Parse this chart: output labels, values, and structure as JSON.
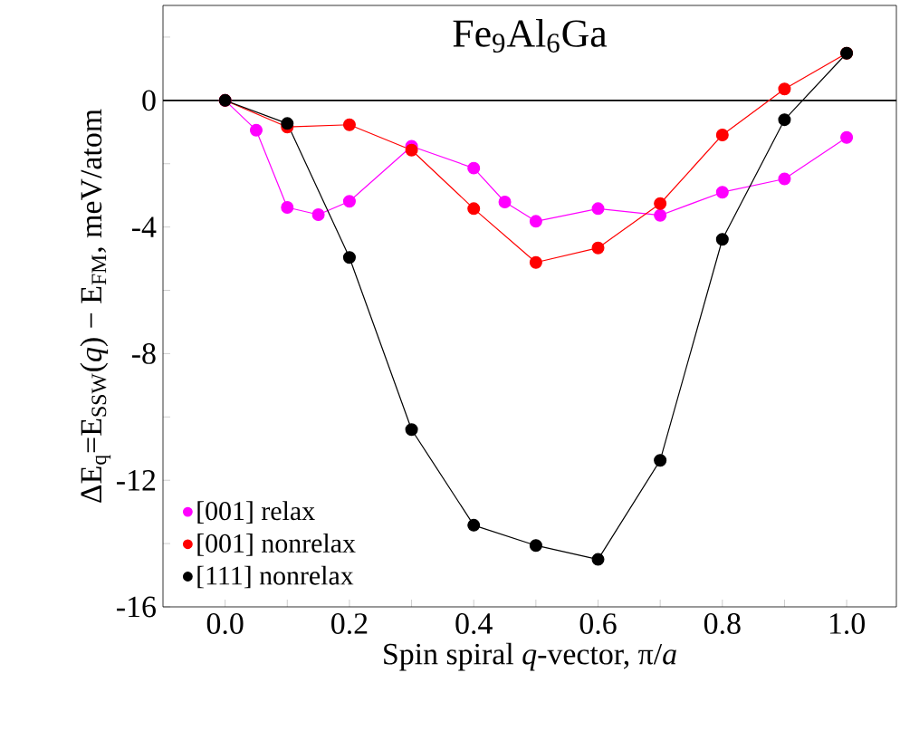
{
  "chart_data": {
    "type": "line",
    "title": "Fe$_{9}$Al$_{6}$Ga",
    "xlabel": "Spin spiral *q*-vector, π/*a*",
    "ylabel": "ΔE$_{q}$=E$_{SSW}$(*q*) − E$_{FM}$, meV/atom",
    "xlim": [
      -0.1,
      1.08
    ],
    "ylim": [
      -16,
      3
    ],
    "xticks": [
      {
        "value": 0,
        "label": "0.0"
      },
      {
        "value": 0.1,
        "label": null
      },
      {
        "value": 0.2,
        "label": "0.2"
      },
      {
        "value": 0.3,
        "label": null
      },
      {
        "value": 0.4,
        "label": "0.4"
      },
      {
        "value": 0.5,
        "label": null
      },
      {
        "value": 0.6,
        "label": "0.6"
      },
      {
        "value": 0.7,
        "label": null
      },
      {
        "value": 0.8,
        "label": "0.8"
      },
      {
        "value": 0.9,
        "label": null
      },
      {
        "value": 1,
        "label": "1.0"
      }
    ],
    "yticks": [
      -16,
      {
        "value": -14,
        "label": null
      },
      -12,
      {
        "value": -10,
        "label": null
      },
      -8,
      {
        "value": -6,
        "label": null
      },
      -4,
      {
        "value": -2,
        "label": null
      },
      0,
      {
        "value": 2,
        "label": null
      }
    ],
    "series": [
      {
        "name": "[001] relax",
        "color": "#ff00ff",
        "x": [
          0,
          0.05,
          0.1,
          0.15,
          0.2,
          0.3,
          0.4,
          0.45,
          0.5,
          0.6,
          0.7,
          0.8,
          0.9,
          1.0
        ],
        "values": [
          0,
          -0.94,
          -3.38,
          -3.61,
          -3.19,
          -1.45,
          -2.14,
          -3.21,
          -3.82,
          -3.42,
          -3.63,
          -2.9,
          -2.48,
          -1.17
        ]
      },
      {
        "name": "[001] nonrelax",
        "color": "#ff0000",
        "x": [
          0,
          0.1,
          0.2,
          0.3,
          0.4,
          0.5,
          0.6,
          0.7,
          0.8,
          0.9,
          1.0
        ],
        "values": [
          0,
          -0.84,
          -0.77,
          -1.57,
          -3.42,
          -5.12,
          -4.66,
          -3.26,
          -1.09,
          0.36,
          1.49
        ]
      },
      {
        "name": "[111] nonrelax",
        "color": "#000000",
        "x": [
          0,
          0.1,
          0.2,
          0.3,
          0.4,
          0.5,
          0.6,
          0.7,
          0.8,
          0.9,
          1.0
        ],
        "values": [
          0,
          -0.73,
          -4.96,
          -10.4,
          -13.42,
          -14.06,
          -14.5,
          -11.37,
          -4.39,
          -0.61,
          1.49
        ]
      }
    ],
    "ref_lines": [
      {
        "axis": "y",
        "value": 0,
        "color": "#000000"
      }
    ],
    "marker": "circle",
    "legend": "bottom left",
    "grid": false
  }
}
